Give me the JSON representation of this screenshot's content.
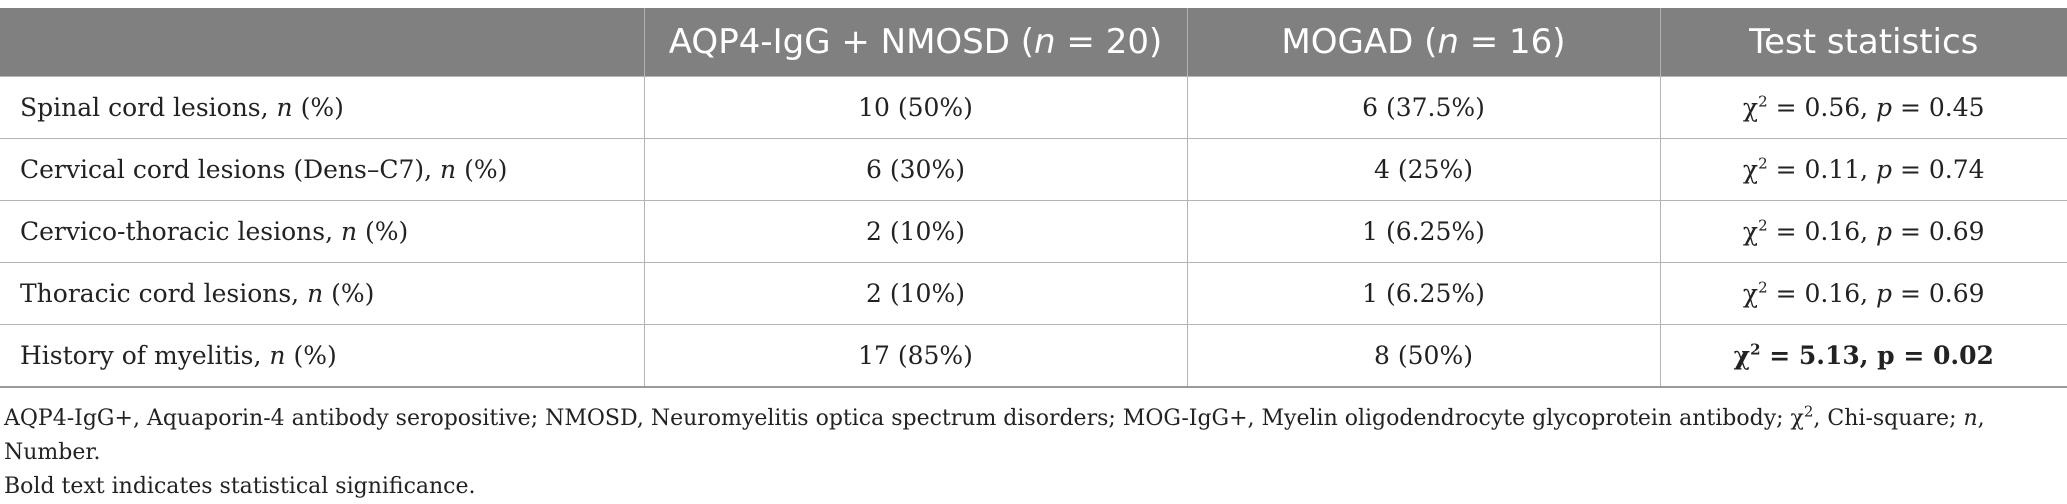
{
  "table": {
    "headers": [
      {
        "pre": "",
        "it": "",
        "post": ""
      },
      {
        "pre": "AQP4-IgG + NMOSD (",
        "it": "n",
        "post": " = 20)"
      },
      {
        "pre": "MOGAD (",
        "it": "n",
        "post": " = 16)"
      },
      {
        "pre": "Test statistics",
        "it": "",
        "post": ""
      }
    ],
    "rows": [
      {
        "label_pre": "Spinal cord lesions, ",
        "label_it": "n",
        "label_post": " (%)",
        "aqp4": "10 (50%)",
        "mogad": "6 (37.5%)",
        "chi": "2",
        "stat_mid": " = 0.56, ",
        "p_label": "p",
        "p_val": " = 0.45",
        "bold": false
      },
      {
        "label_pre": "Cervical cord lesions (Dens–C7), ",
        "label_it": "n",
        "label_post": " (%)",
        "aqp4": "6 (30%)",
        "mogad": "4 (25%)",
        "chi": "2",
        "stat_mid": " = 0.11, ",
        "p_label": "p",
        "p_val": " = 0.74",
        "bold": false
      },
      {
        "label_pre": "Cervico-thoracic lesions, ",
        "label_it": "n",
        "label_post": " (%)",
        "aqp4": "2 (10%)",
        "mogad": "1 (6.25%)",
        "chi": "2",
        "stat_mid": " = 0.16, ",
        "p_label": "p",
        "p_val": " = 0.69",
        "bold": false
      },
      {
        "label_pre": "Thoracic cord lesions, ",
        "label_it": "n",
        "label_post": " (%)",
        "aqp4": "2 (10%)",
        "mogad": "1 (6.25%)",
        "chi": "2",
        "stat_mid": " = 0.16, ",
        "p_label": "p",
        "p_val": " = 0.69",
        "bold": false
      },
      {
        "label_pre": "History of myelitis, ",
        "label_it": "n",
        "label_post": " (%)",
        "aqp4": "17 (85%)",
        "mogad": "8 (50%)",
        "chi": "2",
        "stat_mid": " = 5.13, ",
        "p_label": "p",
        "p_val": " = 0.02",
        "bold": true
      }
    ]
  },
  "footnote": {
    "line1_a": "AQP4-IgG+, Aquaporin-4 antibody seropositive; NMOSD, Neuromyelitis optica spectrum disorders; MOG-IgG+, Myelin oligodendrocyte glycoprotein antibody; χ",
    "line1_sup": "2",
    "line1_b": ", Chi-square; ",
    "line1_it": "n",
    "line1_c": ", Number.",
    "line2": "Bold text indicates statistical significance."
  }
}
